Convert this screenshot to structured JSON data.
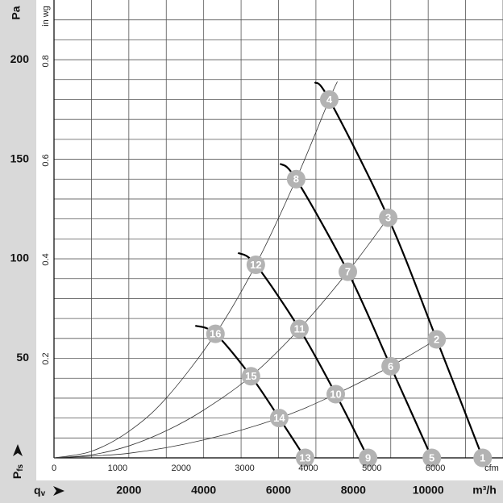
{
  "chart_data": {
    "type": "fan-curve",
    "y_label": "Pa",
    "y2_label": "in wg",
    "x_label": "q",
    "x_label_sub": "v",
    "y_axis_symbol": "P",
    "y_axis_symbol_sub": "fs",
    "x_unit": "m³/h",
    "x2_unit": "cfm",
    "xlim": [
      0,
      12000
    ],
    "ylim": [
      0,
      230
    ],
    "xticks": [
      2000,
      4000,
      6000,
      8000,
      10000
    ],
    "yticks": [
      50,
      100,
      150,
      200
    ],
    "x2lim": [
      0,
      7063
    ],
    "x2ticks": [
      0,
      1000,
      2000,
      3000,
      4000,
      5000,
      6000
    ],
    "y2lim": [
      0,
      0.9234
    ],
    "y2ticks": [
      0.2,
      0.4,
      0.6,
      0.8
    ],
    "xgrid": [
      1000,
      2000,
      3000,
      4000,
      5000,
      6000,
      7000,
      8000,
      9000,
      10000,
      11000,
      12000
    ],
    "ygrid": [
      10,
      20,
      30,
      40,
      50,
      60,
      70,
      80,
      90,
      100,
      110,
      120,
      130,
      140,
      150,
      160,
      170,
      180,
      190,
      200,
      210,
      220
    ],
    "grid": true,
    "fan_curves": [
      {
        "x": [
          6969,
          7357,
          8932,
          10226,
          11456
        ],
        "y": [
          188.7,
          180,
          120.6,
          59.5,
          0
        ]
      },
      {
        "x": [
          6041,
          6472,
          7853,
          8997,
          10097
        ],
        "y": [
          147.8,
          140,
          93.5,
          46,
          0
        ]
      },
      {
        "x": [
          4919,
          5394,
          6559,
          7530,
          8393
        ],
        "y": [
          103,
          97,
          64.8,
          32,
          0
        ]
      },
      {
        "x": [
          3776,
          4315,
          5264,
          6019,
          6710
        ],
        "y": [
          66.4,
          62.3,
          41,
          20,
          0
        ]
      }
    ],
    "system_curves": [
      {
        "x": [
          0,
          1000,
          2000,
          3000,
          4315,
          5394,
          6472,
          7357,
          7573
        ],
        "y": [
          0,
          3.3,
          13.3,
          30,
          62.3,
          97,
          140,
          180,
          189
        ]
      },
      {
        "x": [
          0,
          1000,
          2000,
          3000,
          4000,
          5264,
          6559,
          7853,
          8932
        ],
        "y": [
          0,
          1.5,
          6,
          13.6,
          24,
          41,
          64.8,
          93.5,
          120.6
        ]
      },
      {
        "x": [
          0,
          2000,
          4000,
          6019,
          7530,
          8997,
          10226
        ],
        "y": [
          0,
          2.3,
          9,
          20,
          32,
          46,
          59.5
        ]
      }
    ],
    "points": [
      {
        "label": "1",
        "x": 11456,
        "y": 0
      },
      {
        "label": "2",
        "x": 10226,
        "y": 59.5
      },
      {
        "label": "3",
        "x": 8932,
        "y": 120.6
      },
      {
        "label": "4",
        "x": 7357,
        "y": 180
      },
      {
        "label": "5",
        "x": 10097,
        "y": 0
      },
      {
        "label": "6",
        "x": 8997,
        "y": 46
      },
      {
        "label": "7",
        "x": 7853,
        "y": 93.5
      },
      {
        "label": "8",
        "x": 6472,
        "y": 140
      },
      {
        "label": "9",
        "x": 8393,
        "y": 0
      },
      {
        "label": "10",
        "x": 7530,
        "y": 32
      },
      {
        "label": "11",
        "x": 6559,
        "y": 64.8
      },
      {
        "label": "12",
        "x": 5394,
        "y": 97
      },
      {
        "label": "13",
        "x": 6710,
        "y": 0
      },
      {
        "label": "14",
        "x": 6019,
        "y": 20
      },
      {
        "label": "15",
        "x": 5264,
        "y": 41
      },
      {
        "label": "16",
        "x": 4315,
        "y": 62.3
      }
    ],
    "point_color": "#b3b3b3",
    "curve_color": "#000000",
    "system_color": "#333333",
    "grid_color": "#555555"
  }
}
